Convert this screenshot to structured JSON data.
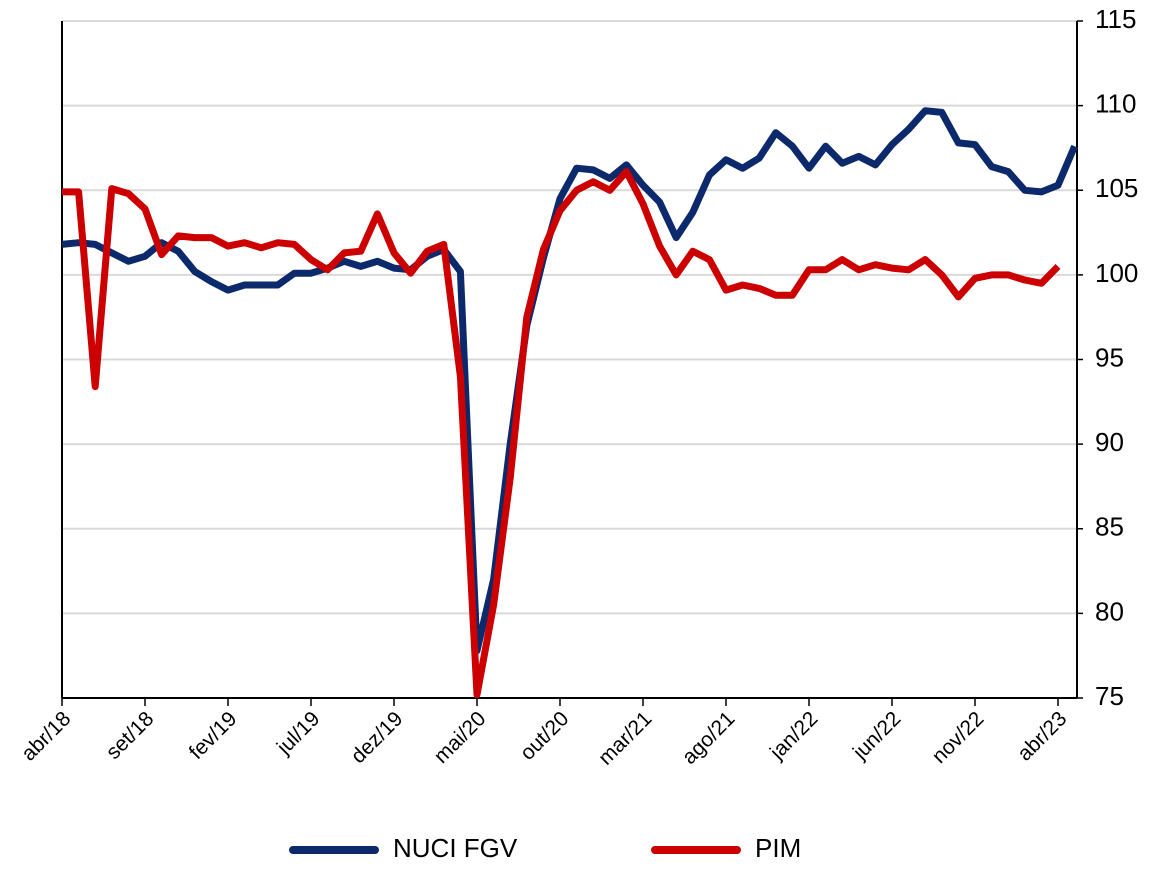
{
  "chart_data": {
    "type": "line",
    "categories": [
      "abr/18",
      null,
      null,
      null,
      null,
      "set/18",
      null,
      null,
      null,
      null,
      "fev/19",
      null,
      null,
      null,
      null,
      "jul/19",
      null,
      null,
      null,
      null,
      "dez/19",
      null,
      null,
      null,
      null,
      "mai/20",
      null,
      null,
      null,
      null,
      "out/20",
      null,
      null,
      null,
      null,
      "mar/21",
      null,
      null,
      null,
      null,
      "ago/21",
      null,
      null,
      null,
      null,
      "jan/22",
      null,
      null,
      null,
      null,
      "jun/22",
      null,
      null,
      null,
      null,
      "nov/22",
      null,
      null,
      null,
      null,
      "abr/23",
      null
    ],
    "series": [
      {
        "name": "NUCI FGV",
        "color": "#0c2a6b",
        "values": [
          101.8,
          101.9,
          101.8,
          101.3,
          100.8,
          101.1,
          101.9,
          101.4,
          100.2,
          99.6,
          99.1,
          99.4,
          99.4,
          99.4,
          100.1,
          100.1,
          100.4,
          100.8,
          100.5,
          100.8,
          100.4,
          100.3,
          101.1,
          101.5,
          100.2,
          77.8,
          82,
          90,
          97,
          101,
          104.5,
          106.3,
          106.2,
          105.7,
          106.5,
          105.3,
          104.3,
          102.2,
          103.7,
          105.9,
          106.8,
          106.3,
          106.9,
          108.4,
          107.6,
          106.3,
          107.6,
          106.6,
          107.0,
          106.5,
          107.7,
          108.6,
          109.7,
          109.6,
          107.8,
          107.7,
          106.4,
          106.1,
          105.0,
          104.9,
          105.3,
          107.6
        ]
      },
      {
        "name": "PIM",
        "color": "#cc0000",
        "values": [
          104.9,
          104.9,
          93.4,
          105.1,
          104.8,
          103.9,
          101.2,
          102.3,
          102.2,
          102.2,
          101.7,
          101.9,
          101.6,
          101.9,
          101.8,
          100.9,
          100.3,
          101.3,
          101.4,
          103.6,
          101.3,
          100.1,
          101.4,
          101.8,
          94,
          75.2,
          80.5,
          88,
          97.5,
          101.5,
          103.8,
          105.0,
          105.5,
          105.0,
          106.1,
          104.2,
          101.7,
          100.0,
          101.4,
          100.9,
          99.1,
          99.4,
          99.2,
          98.8,
          98.8,
          100.3,
          100.3,
          100.9,
          100.3,
          100.6,
          100.4,
          100.3,
          100.9,
          100.0,
          98.7,
          99.8,
          100.0,
          100.0,
          99.7,
          99.5,
          100.5,
          null
        ]
      }
    ],
    "ylim": [
      75,
      115
    ],
    "yticks": [
      75,
      80,
      85,
      90,
      95,
      100,
      105,
      110,
      115
    ],
    "grid": true,
    "legend": "bottom"
  }
}
